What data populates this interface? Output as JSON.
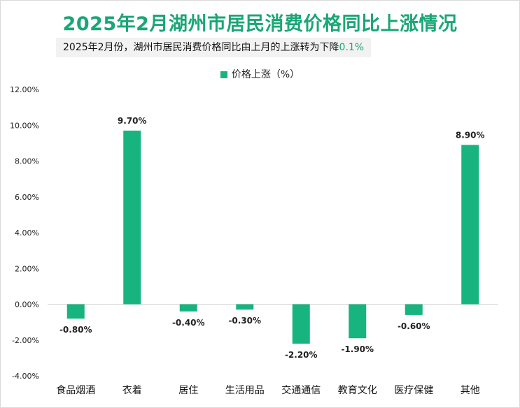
{
  "header": {
    "title": "2025年2月湖州市居民消费价格同比上涨情况",
    "subtitle_text": "2025年2月份，湖州市居民消费价格同比由上月的上涨转为下降",
    "subtitle_highlight": "0.1%"
  },
  "colors": {
    "bar": "#17b480",
    "accent": "#1aa676"
  },
  "chart_data": {
    "type": "bar",
    "title": "2025年2月湖州市居民消费价格同比上涨情况",
    "categories": [
      "食品烟酒",
      "衣着",
      "居住",
      "生活用品",
      "交通通信",
      "教育文化",
      "医疗保健",
      "其他"
    ],
    "series": [
      {
        "name": "价格上涨（%）",
        "values": [
          -0.8,
          9.7,
          -0.4,
          -0.3,
          -2.2,
          -1.9,
          -0.6,
          8.9
        ],
        "labels": [
          "-0.80%",
          "9.70%",
          "-0.40%",
          "-0.30%",
          "-2.20%",
          "-1.90%",
          "-0.60%",
          "8.90%"
        ]
      }
    ],
    "ylim": [
      -4,
      12
    ],
    "yticks": [
      12,
      10,
      8,
      6,
      4,
      2,
      0,
      -2,
      -4
    ],
    "ytick_labels": [
      "12.00%",
      "10.00%",
      "8.00%",
      "6.00%",
      "4.00%",
      "2.00%",
      "0.00%",
      "-2.00%",
      "-4.00%"
    ],
    "legend_position": "top-center",
    "grid": false
  }
}
